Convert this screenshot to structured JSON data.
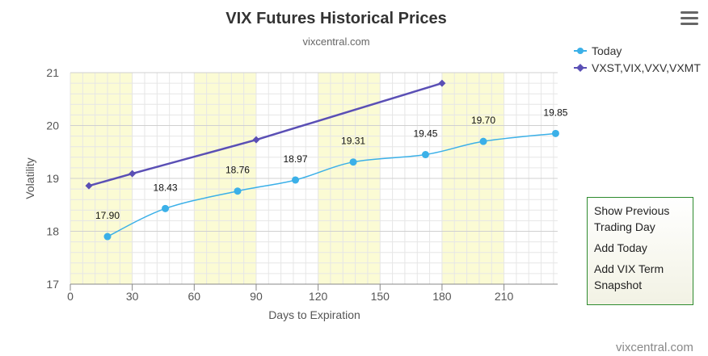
{
  "chart_data": {
    "type": "line",
    "title": "VIX Futures Historical Prices",
    "subtitle": "vixcentral.com",
    "xlabel": "Days to Expiration",
    "ylabel": "Volatility",
    "xlim": [
      0,
      236
    ],
    "ylim": [
      17,
      21
    ],
    "xticks": [
      0,
      30,
      60,
      90,
      120,
      150,
      180,
      210
    ],
    "yticks": [
      17,
      18,
      19,
      20,
      21
    ],
    "grid": true,
    "legend_position": "top-right",
    "series": [
      {
        "name": "Today",
        "color": "#3bb0e8",
        "marker": "circle",
        "x": [
          18,
          46,
          81,
          109,
          137,
          172,
          200,
          235
        ],
        "y": [
          17.9,
          18.43,
          18.76,
          18.97,
          19.31,
          19.45,
          19.7,
          19.85
        ],
        "labels": [
          "17.90",
          "18.43",
          "18.76",
          "18.97",
          "19.31",
          "19.45",
          "19.70",
          "19.85"
        ]
      },
      {
        "name": "VXST,VIX,VXV,VXMT",
        "color": "#5a4fb5",
        "marker": "diamond",
        "x": [
          9,
          30,
          90,
          180
        ],
        "y": [
          18.86,
          19.09,
          19.73,
          20.8
        ]
      }
    ]
  },
  "menu_icon": "hamburger-menu-icon",
  "side_panel": {
    "options": [
      "Show Previous Trading Day",
      "Add Today",
      "Add VIX Term Snapshot"
    ]
  },
  "credit": "vixcentral.com"
}
